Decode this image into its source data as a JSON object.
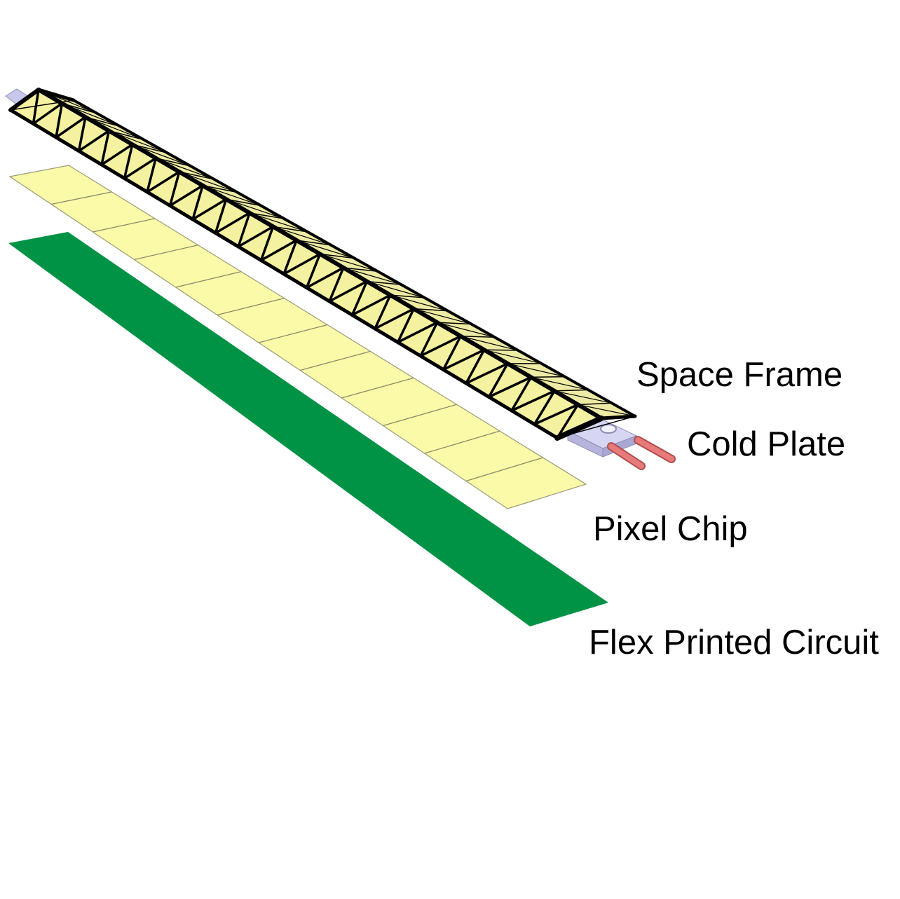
{
  "labels": {
    "space_frame": "Space Frame",
    "cold_plate": "Cold Plate",
    "pixel_chip": "Pixel Chip",
    "flex_printed_circuit": "Flex Printed Circuit"
  },
  "colors": {
    "space_frame_fill": "#f4f2a0",
    "space_frame_struts": "#000000",
    "cold_plate": "#c8c8ec",
    "cooling_pipes": "#e77a7a",
    "pixel_chip": "#fafaa8",
    "pixel_chip_divider": "#8a8a6a",
    "flex_printed_circuit": "#009245",
    "text": "#000000"
  },
  "pixel_chip_count": 12,
  "space_frame_bays": 24
}
